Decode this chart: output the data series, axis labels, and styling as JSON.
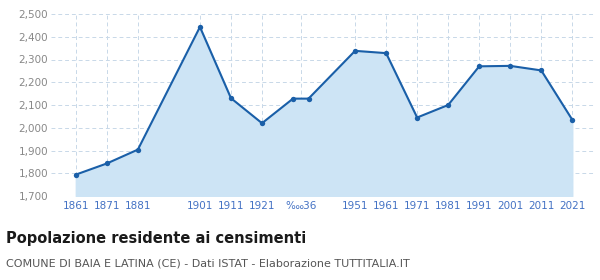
{
  "years": [
    1861,
    1871,
    1881,
    1901,
    1911,
    1921,
    1931,
    1936,
    1951,
    1961,
    1971,
    1981,
    1991,
    2001,
    2011,
    2021
  ],
  "population": [
    1794,
    1843,
    1904,
    2443,
    2130,
    2020,
    2128,
    2128,
    2338,
    2328,
    2045,
    2100,
    2270,
    2272,
    2252,
    2035
  ],
  "x_tick_positions": [
    1861,
    1871,
    1881,
    1901,
    1911,
    1921,
    1933.5,
    1951,
    1961,
    1971,
    1981,
    1991,
    2001,
    2011,
    2021
  ],
  "x_tick_labels": [
    "1861",
    "1871",
    "1881",
    "1901",
    "1911",
    "1921",
    "‱36",
    "1951",
    "1961",
    "1971",
    "1981",
    "1991",
    "2001",
    "2011",
    "2021"
  ],
  "line_color": "#1a5fa8",
  "fill_color": "#cde4f5",
  "marker_color": "#1a5fa8",
  "grid_color": "#c8d8e8",
  "bg_color": "#ffffff",
  "ylim": [
    1700,
    2500
  ],
  "yticks": [
    1700,
    1800,
    1900,
    2000,
    2100,
    2200,
    2300,
    2400,
    2500
  ],
  "xlim": [
    1853,
    2028
  ],
  "title": "Popolazione residente ai censimenti",
  "subtitle": "COMUNE DI BAIA E LATINA (CE) - Dati ISTAT - Elaborazione TUTTITALIA.IT",
  "title_fontsize": 10.5,
  "subtitle_fontsize": 8.0,
  "tick_color": "#4472c4"
}
